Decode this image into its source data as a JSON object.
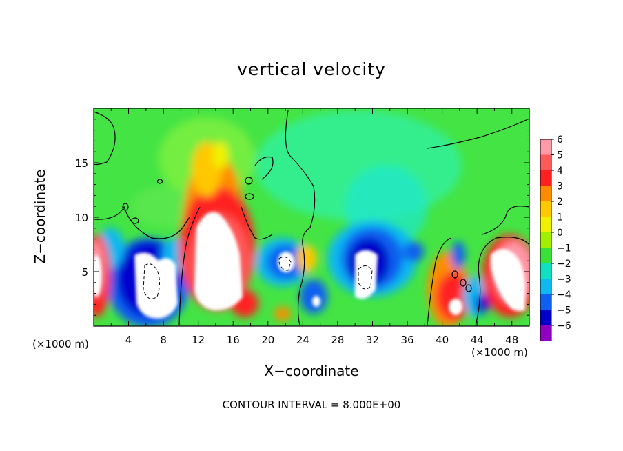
{
  "chart_data": {
    "type": "heatmap",
    "title": "vertical velocity",
    "xlabel": "X−coordinate",
    "ylabel": "Z−coordinate",
    "x_unit_note": "(×1000 m)",
    "contour_note": "CONTOUR INTERVAL = 8.000E+00",
    "xlim": [
      0,
      50
    ],
    "ylim": [
      0,
      20
    ],
    "x_ticks": [
      "4",
      "8",
      "12",
      "16",
      "20",
      "24",
      "28",
      "32",
      "36",
      "40",
      "44",
      "48"
    ],
    "y_ticks": [
      "5",
      "10",
      "15"
    ],
    "colorbar": {
      "ticks": [
        "6",
        "5",
        "4",
        "3",
        "2",
        "1",
        "0",
        "−1",
        "−2",
        "−3",
        "−4",
        "−5",
        "−6"
      ],
      "levels": [
        6,
        5,
        4,
        3,
        2,
        1,
        0,
        -1,
        -2,
        -3,
        -4,
        -5,
        -6
      ],
      "colors": [
        "#ff9aa8",
        "#ff5a5a",
        "#ff2020",
        "#ff8c00",
        "#ffc800",
        "#f0f000",
        "#a0f000",
        "#38e038",
        "#10e0c0",
        "#10b8f0",
        "#1060f0",
        "#0000c8",
        "#9000c0"
      ]
    },
    "features": [
      {
        "kind": "updraft",
        "x": 14,
        "z": 6,
        "peak": 12
      },
      {
        "kind": "updraft",
        "x": 0.5,
        "z": 4.5,
        "peak": 6
      },
      {
        "kind": "updraft",
        "x": 41,
        "z": 3,
        "peak": 8
      },
      {
        "kind": "updraft",
        "x": 48,
        "z": 5,
        "peak": 8
      },
      {
        "kind": "downdraft",
        "x": 7,
        "z": 4.5,
        "peak": -10
      },
      {
        "kind": "downdraft",
        "x": 31.5,
        "z": 5,
        "peak": -9
      },
      {
        "kind": "downdraft",
        "x": 22,
        "z": 5.5,
        "peak": -7
      },
      {
        "kind": "downdraft",
        "x": 25.5,
        "z": 2.5,
        "peak": -6
      },
      {
        "kind": "downdraft",
        "x": 44.5,
        "z": 2,
        "peak": -5
      }
    ]
  }
}
